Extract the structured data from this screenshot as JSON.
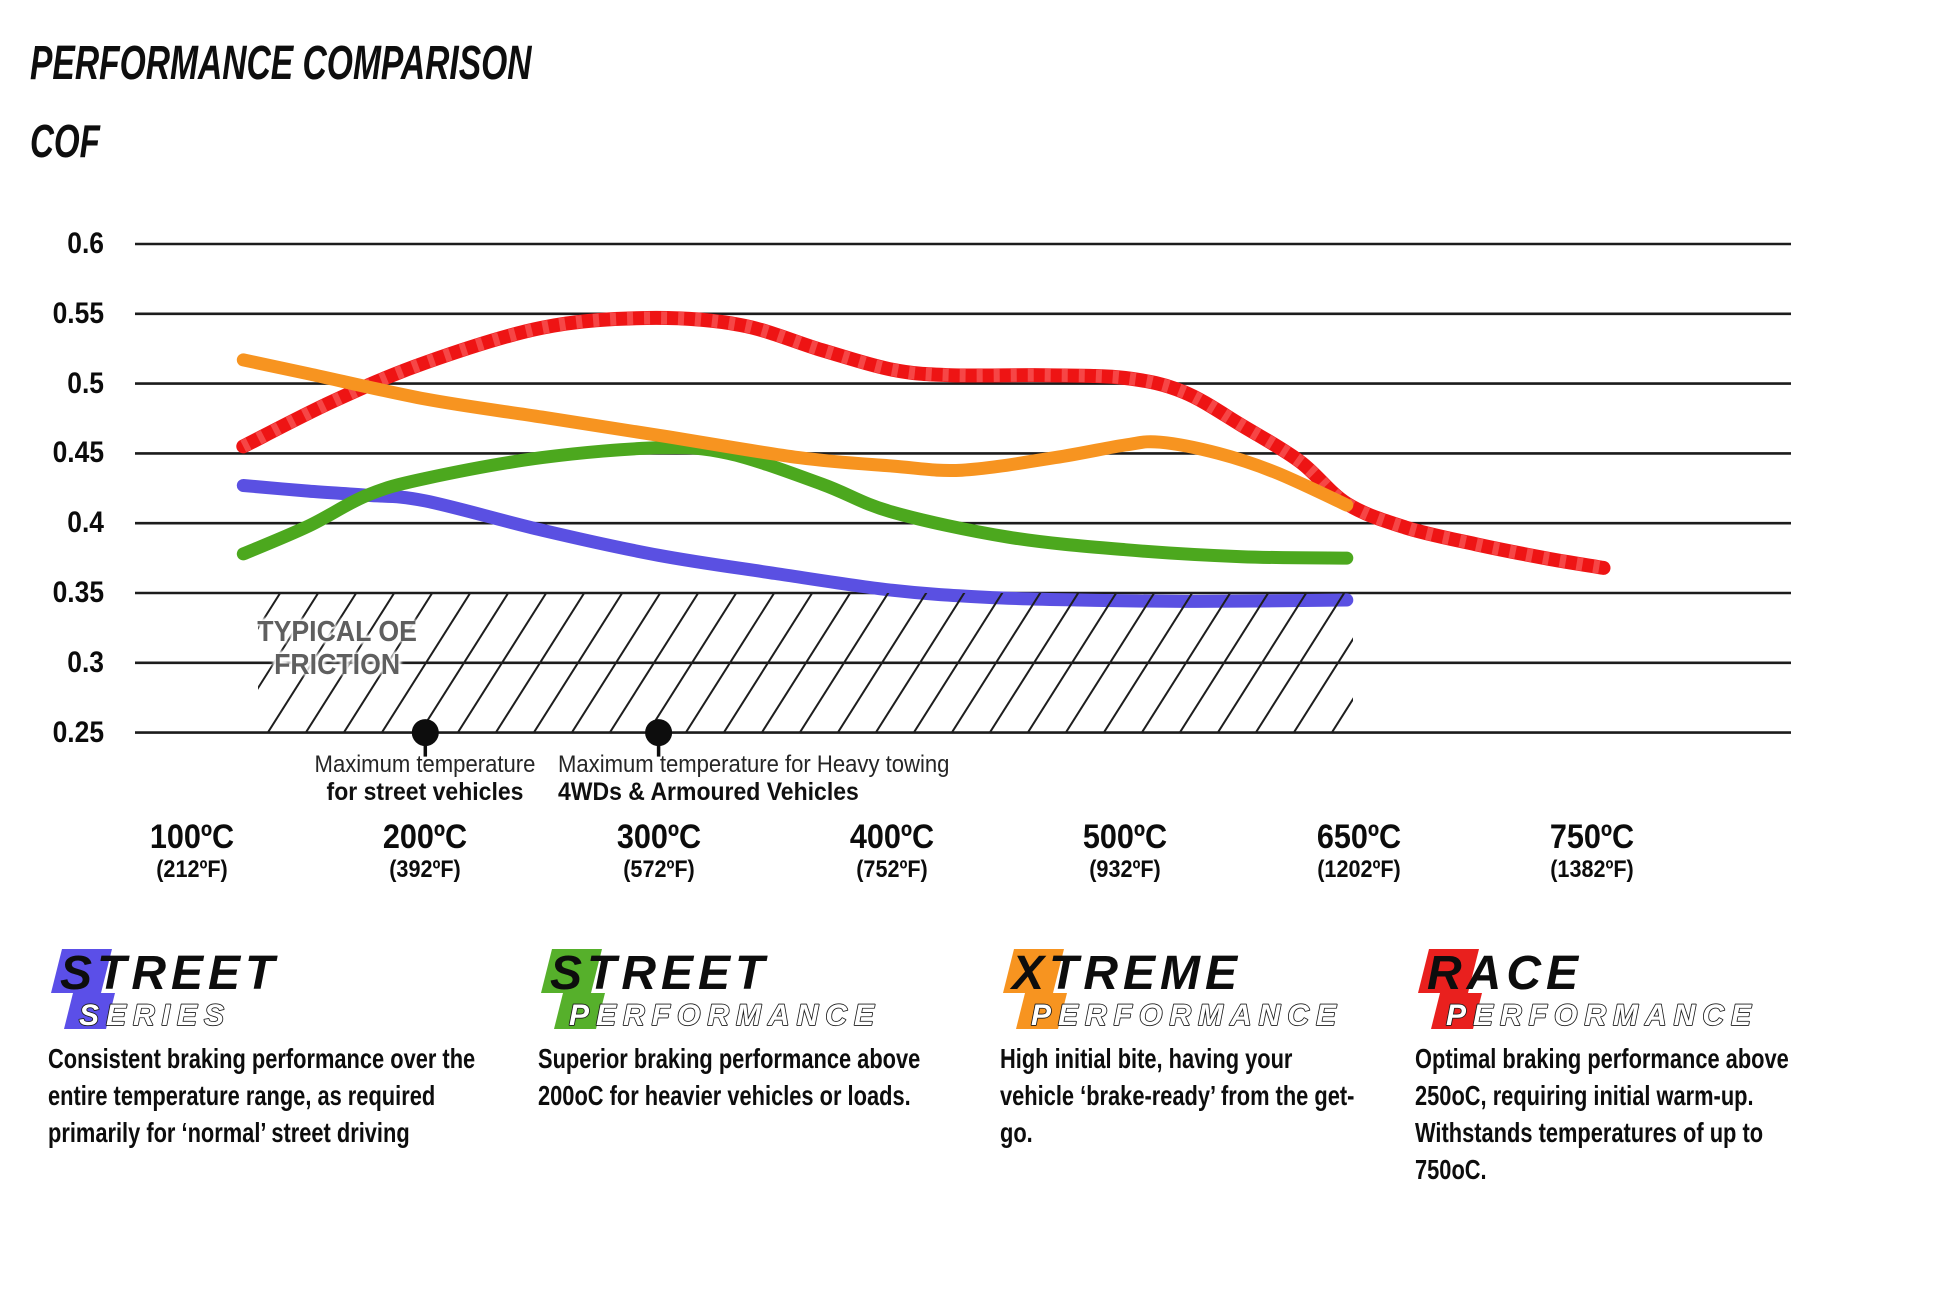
{
  "title": "PERFORMANCE COMPARISON",
  "y_axis_label": "COF",
  "chart_data": {
    "type": "line",
    "title": "PERFORMANCE COMPARISON",
    "ylabel": "COF",
    "ylim": [
      0.25,
      0.625
    ],
    "grid": "horizontal",
    "y_ticks": [
      {
        "label": "0.6",
        "value": 0.6
      },
      {
        "label": "0.55",
        "value": 0.55
      },
      {
        "label": "0.5",
        "value": 0.5
      },
      {
        "label": "0.45",
        "value": 0.45
      },
      {
        "label": "0.4",
        "value": 0.4
      },
      {
        "label": "0.35",
        "value": 0.35
      },
      {
        "label": "0.3",
        "value": 0.3
      },
      {
        "label": "0.25",
        "value": 0.25
      }
    ],
    "x_ticks": [
      {
        "c": "100ºC",
        "f": "(212ºF)"
      },
      {
        "c": "200ºC",
        "f": "(392ºF)"
      },
      {
        "c": "300ºC",
        "f": "(572ºF)"
      },
      {
        "c": "400ºC",
        "f": "(752ºF)"
      },
      {
        "c": "500ºC",
        "f": "(932ºF)"
      },
      {
        "c": "650ºC",
        "f": "(1202ºF)"
      },
      {
        "c": "750ºC",
        "f": "(1382ºF)"
      }
    ],
    "series": [
      {
        "name": "Race Performance",
        "color": "#ee1414",
        "width": 14,
        "texture": true,
        "points": [
          [
            0.22,
            0.455
          ],
          [
            0.6,
            0.487
          ],
          [
            1.0,
            0.515
          ],
          [
            1.5,
            0.54
          ],
          [
            1.95,
            0.547
          ],
          [
            2.35,
            0.542
          ],
          [
            2.7,
            0.524
          ],
          [
            3.0,
            0.51
          ],
          [
            3.25,
            0.506
          ],
          [
            3.65,
            0.506
          ],
          [
            4.0,
            0.504
          ],
          [
            4.25,
            0.494
          ],
          [
            4.5,
            0.47
          ],
          [
            4.75,
            0.444
          ],
          [
            4.95,
            0.414
          ],
          [
            5.2,
            0.397
          ],
          [
            5.5,
            0.385
          ],
          [
            5.8,
            0.375
          ],
          [
            6.05,
            0.368
          ]
        ]
      },
      {
        "name": "Street Series",
        "color": "#5a50e2",
        "width": 13,
        "texture": false,
        "points": [
          [
            0.22,
            0.427
          ],
          [
            0.5,
            0.423
          ],
          [
            0.75,
            0.42
          ],
          [
            1.0,
            0.416
          ],
          [
            1.5,
            0.395
          ],
          [
            2.0,
            0.377
          ],
          [
            2.5,
            0.364
          ],
          [
            3.0,
            0.352
          ],
          [
            3.4,
            0.347
          ],
          [
            3.8,
            0.345
          ],
          [
            4.3,
            0.344
          ],
          [
            4.95,
            0.345
          ]
        ]
      },
      {
        "name": "Street Performance",
        "color": "#4ca81e",
        "width": 13,
        "texture": false,
        "points": [
          [
            0.22,
            0.378
          ],
          [
            0.5,
            0.398
          ],
          [
            0.75,
            0.42
          ],
          [
            1.0,
            0.432
          ],
          [
            1.5,
            0.447
          ],
          [
            2.0,
            0.454
          ],
          [
            2.3,
            0.45
          ],
          [
            2.7,
            0.428
          ],
          [
            3.0,
            0.408
          ],
          [
            3.5,
            0.39
          ],
          [
            4.0,
            0.381
          ],
          [
            4.5,
            0.376
          ],
          [
            4.95,
            0.375
          ]
        ]
      },
      {
        "name": "Xtreme Performance",
        "color": "#f79420",
        "width": 13,
        "texture": false,
        "points": [
          [
            0.22,
            0.517
          ],
          [
            0.5,
            0.507
          ],
          [
            1.0,
            0.489
          ],
          [
            1.5,
            0.476
          ],
          [
            2.0,
            0.463
          ],
          [
            2.6,
            0.447
          ],
          [
            3.0,
            0.441
          ],
          [
            3.3,
            0.438
          ],
          [
            3.7,
            0.447
          ],
          [
            4.0,
            0.456
          ],
          [
            4.15,
            0.458
          ],
          [
            4.4,
            0.45
          ],
          [
            4.65,
            0.436
          ],
          [
            4.95,
            0.413
          ]
        ]
      }
    ],
    "oe_band": {
      "label_line1": "TYPICAL OE",
      "label_line2": "FRICTION",
      "from": 0.25,
      "to": 0.35
    },
    "annotations": [
      {
        "x_index": 1,
        "line1": "Maximum temperature",
        "line2": "for street vehicles"
      },
      {
        "x_index": 2,
        "line1": "Maximum temperature for Heavy towing",
        "line2": "4WDs & Armoured Vehicles"
      }
    ]
  },
  "legends": [
    {
      "word1": "STREET",
      "word2": "SERIES",
      "color": "#5b4fe8",
      "description": "Consistent braking performance over the entire temperature range, as required primarily for ‘normal’ street driving"
    },
    {
      "word1": "STREET",
      "word2": "PERFORMANCE",
      "color": "#56b02b",
      "description": "Superior braking performance above 200oC for heavier vehicles or loads."
    },
    {
      "word1": "XTREME",
      "word2": "PERFORMANCE",
      "color": "#f79420",
      "description": "High initial bite, having your vehicle ‘brake-ready’ from the get-go."
    },
    {
      "word1": "RACE",
      "word2": "PERFORMANCE",
      "color": "#e9201e",
      "description": "Optimal braking performance above 250oC, requiring initial warm-up. Withstands temperatures of up to 750oC."
    }
  ]
}
